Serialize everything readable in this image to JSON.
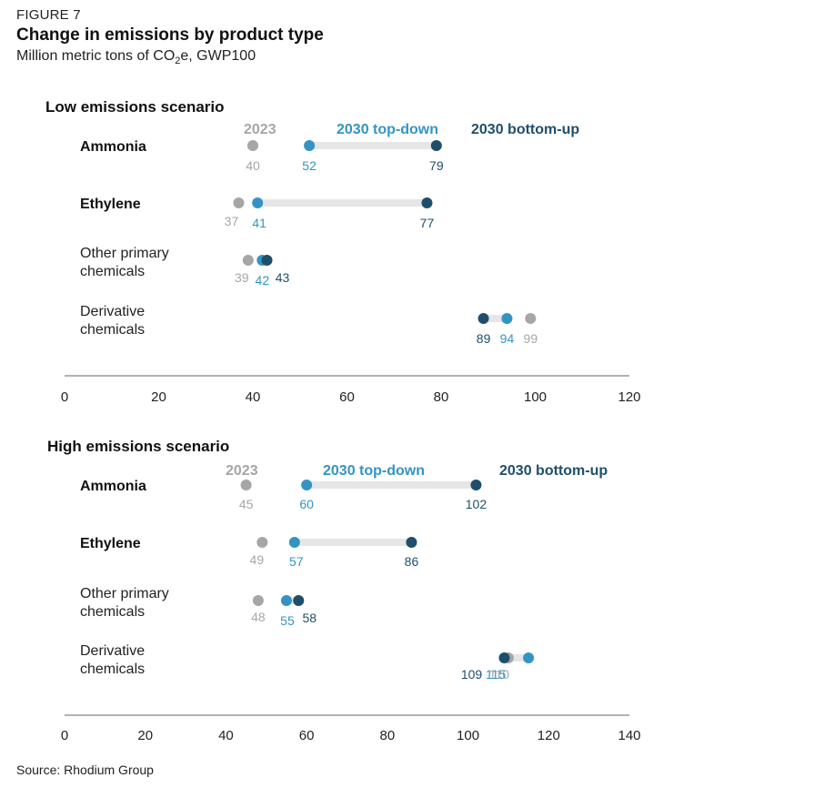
{
  "figure_label": "FIGURE 7",
  "title": "Change in emissions by product type",
  "subtitle_prefix": "Million metric tons of CO",
  "subtitle_sub": "2",
  "subtitle_suffix": "e, GWP100",
  "source": "Source: Rhodium Group",
  "colors": {
    "2023": "#a6a6a6",
    "2030 top-down": "#3394c4",
    "2030 bottom-up": "#1f4e6b",
    "connector": "#e6e6e6",
    "axis": "#999999"
  },
  "chart_data": [
    {
      "type": "dot-plot",
      "title": "Low emissions scenario",
      "legend": [
        "2023",
        "2030 top-down",
        "2030 bottom-up"
      ],
      "xlim": [
        0,
        120
      ],
      "xticks": [
        0,
        20,
        40,
        60,
        80,
        100,
        120
      ],
      "categories": [
        "Ammonia",
        "Ethylene",
        "Other primary chemicals",
        "Derivative chemicals"
      ],
      "category_lines": [
        [
          "Ammonia"
        ],
        [
          "Ethylene"
        ],
        [
          "Other primary",
          "chemicals"
        ],
        [
          "Derivative",
          "chemicals"
        ]
      ],
      "bold_categories": [
        "Ammonia",
        "Ethylene"
      ],
      "series": [
        {
          "name": "2023",
          "values": [
            40,
            37,
            39,
            99
          ]
        },
        {
          "name": "2030 top-down",
          "values": [
            52,
            41,
            42,
            94
          ]
        },
        {
          "name": "2030 bottom-up",
          "values": [
            79,
            77,
            43,
            89
          ]
        }
      ]
    },
    {
      "type": "dot-plot",
      "title": "High emissions scenario",
      "legend": [
        "2023",
        "2030 top-down",
        "2030 bottom-up"
      ],
      "xlim": [
        0,
        140
      ],
      "xticks": [
        0,
        20,
        40,
        60,
        80,
        100,
        120,
        140
      ],
      "categories": [
        "Ammonia",
        "Ethylene",
        "Other primary chemicals",
        "Derivative chemicals"
      ],
      "category_lines": [
        [
          "Ammonia"
        ],
        [
          "Ethylene"
        ],
        [
          "Other primary",
          "chemicals"
        ],
        [
          "Derivative",
          "chemicals"
        ]
      ],
      "bold_categories": [
        "Ammonia",
        "Ethylene"
      ],
      "series": [
        {
          "name": "2023",
          "values": [
            45,
            49,
            48,
            110
          ]
        },
        {
          "name": "2030 top-down",
          "values": [
            60,
            57,
            55,
            115
          ]
        },
        {
          "name": "2030 bottom-up",
          "values": [
            102,
            86,
            58,
            109
          ]
        }
      ]
    }
  ]
}
